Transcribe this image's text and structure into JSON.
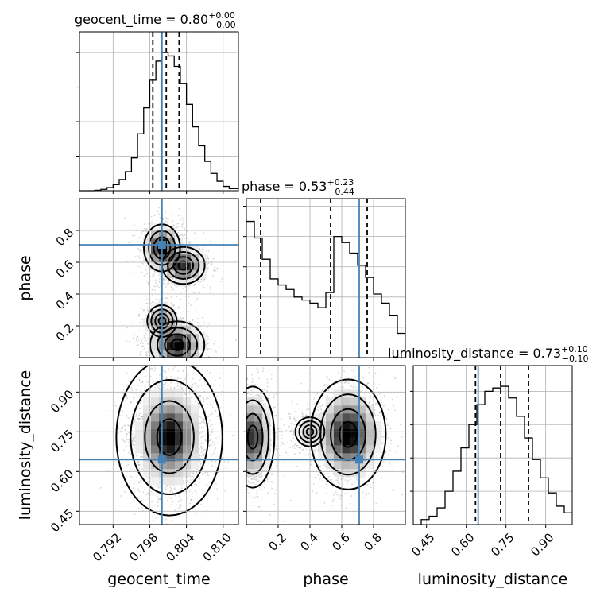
{
  "chart_data": {
    "type": "corner",
    "parameters": [
      "geocent_time",
      "phase",
      "luminosity_distance"
    ],
    "truth": {
      "geocent_time": 0.8,
      "phase": 0.71,
      "luminosity_distance": 0.645
    },
    "diagonal": [
      {
        "param": "geocent_time",
        "title_main": "geocent_time = 0.80",
        "title_sup": "+0.00",
        "title_sub": "−0.00",
        "range": [
          0.7865,
          0.8125
        ],
        "quantiles": [
          0.7985,
          0.8007,
          0.8028
        ],
        "hist_edges": [
          0.7865,
          0.788,
          0.789,
          0.79,
          0.791,
          0.792,
          0.793,
          0.794,
          0.795,
          0.796,
          0.797,
          0.798,
          0.799,
          0.8,
          0.801,
          0.802,
          0.803,
          0.804,
          0.805,
          0.806,
          0.807,
          0.808,
          0.809,
          0.81,
          0.811,
          0.8125
        ],
        "hist_counts": [
          0,
          0,
          0.3,
          0.8,
          1.8,
          3.5,
          6.5,
          11,
          19,
          33,
          48,
          64,
          75,
          80,
          78,
          72,
          62,
          50,
          37,
          26,
          17,
          10,
          5.5,
          2.5,
          1.2
        ],
        "yticks": [
          20,
          40,
          60,
          80
        ],
        "xticks": [
          0.792,
          0.798,
          0.804,
          0.81
        ],
        "xtick_labels": [
          "0.792",
          "0.798",
          "0.804",
          "0.810"
        ],
        "xlabel": "geocent_time"
      },
      {
        "param": "phase",
        "title_main": "phase = 0.53",
        "title_sup": "+0.23",
        "title_sub": "−0.44",
        "range": [
          0.0,
          1.0
        ],
        "quantiles": [
          0.09,
          0.53,
          0.76
        ],
        "hist_edges": [
          0.0,
          0.05,
          0.1,
          0.15,
          0.2,
          0.25,
          0.3,
          0.35,
          0.4,
          0.45,
          0.5,
          0.55,
          0.6,
          0.65,
          0.7,
          0.75,
          0.8,
          0.85,
          0.9,
          0.95,
          1.0
        ],
        "hist_counts": [
          90,
          79,
          65,
          52,
          48,
          45,
          40,
          38,
          36,
          33,
          43,
          80,
          76,
          69,
          61,
          53,
          42,
          36,
          28,
          16
        ],
        "yticks": [
          20,
          40,
          60,
          80,
          100
        ],
        "xticks": [
          0.2,
          0.4,
          0.6,
          0.8
        ],
        "xtick_labels": [
          "0.2",
          "0.4",
          "0.6",
          "0.8"
        ],
        "xlabel": "phase"
      },
      {
        "param": "luminosity_distance",
        "title_main": "luminosity_distance = 0.73",
        "title_sup": "+0.10",
        "title_sub": "−0.10",
        "range": [
          0.4,
          1.0
        ],
        "quantiles": [
          0.635,
          0.73,
          0.835
        ],
        "hist_edges": [
          0.4,
          0.43,
          0.46,
          0.49,
          0.52,
          0.55,
          0.58,
          0.61,
          0.64,
          0.67,
          0.7,
          0.73,
          0.76,
          0.79,
          0.82,
          0.85,
          0.88,
          0.91,
          0.94,
          0.97,
          1.0
        ],
        "hist_counts": [
          0,
          3,
          5,
          10,
          20,
          32,
          46,
          60,
          72,
          80,
          82,
          83,
          76,
          65,
          52,
          39,
          28,
          19,
          11,
          7
        ],
        "yticks": [
          20,
          40,
          60,
          80
        ],
        "xticks": [
          0.45,
          0.6,
          0.75,
          0.9
        ],
        "xtick_labels": [
          "0.45",
          "0.60",
          "0.75",
          "0.90"
        ],
        "xlabel": "luminosity_distance"
      }
    ],
    "ylabels": {
      "phase": "phase",
      "luminosity_distance": "luminosity_distance"
    },
    "ytick_labels": {
      "phase": {
        "ticks": [
          0.2,
          0.4,
          0.6,
          0.8
        ],
        "labels": [
          "0.2",
          "0.4",
          "0.6",
          "0.8"
        ]
      },
      "luminosity_distance": {
        "ticks": [
          0.45,
          0.6,
          0.75,
          0.9
        ],
        "labels": [
          "0.45",
          "0.60",
          "0.75",
          "0.90"
        ]
      }
    },
    "pairs": [
      {
        "x": "geocent_time",
        "y": "phase",
        "modes": [
          {
            "cx": 0.8,
            "cy": 0.69,
            "sx": 0.0012,
            "sy": 0.06,
            "w": 0.3
          },
          {
            "cx": 0.8035,
            "cy": 0.58,
            "sx": 0.0015,
            "sy": 0.05,
            "w": 0.25
          },
          {
            "cx": 0.8025,
            "cy": 0.08,
            "sx": 0.0018,
            "sy": 0.06,
            "w": 0.3
          },
          {
            "cx": 0.8,
            "cy": 0.23,
            "sx": 0.0012,
            "sy": 0.05,
            "w": 0.15
          }
        ]
      },
      {
        "x": "geocent_time",
        "y": "luminosity_distance",
        "modes": [
          {
            "cx": 0.8012,
            "cy": 0.73,
            "sx": 0.0022,
            "sy": 0.075,
            "w": 1.0
          }
        ]
      },
      {
        "x": "phase",
        "y": "luminosity_distance",
        "modes": [
          {
            "cx": 0.04,
            "cy": 0.73,
            "sx": 0.05,
            "sy": 0.07,
            "w": 0.4
          },
          {
            "cx": 0.64,
            "cy": 0.74,
            "sx": 0.08,
            "sy": 0.07,
            "w": 0.5
          },
          {
            "cx": 0.4,
            "cy": 0.75,
            "sx": 0.05,
            "sy": 0.03,
            "w": 0.1
          }
        ]
      }
    ],
    "colors": {
      "truth": "#4682b4",
      "contour": "#000000",
      "grid": "#b0b0b0"
    }
  }
}
